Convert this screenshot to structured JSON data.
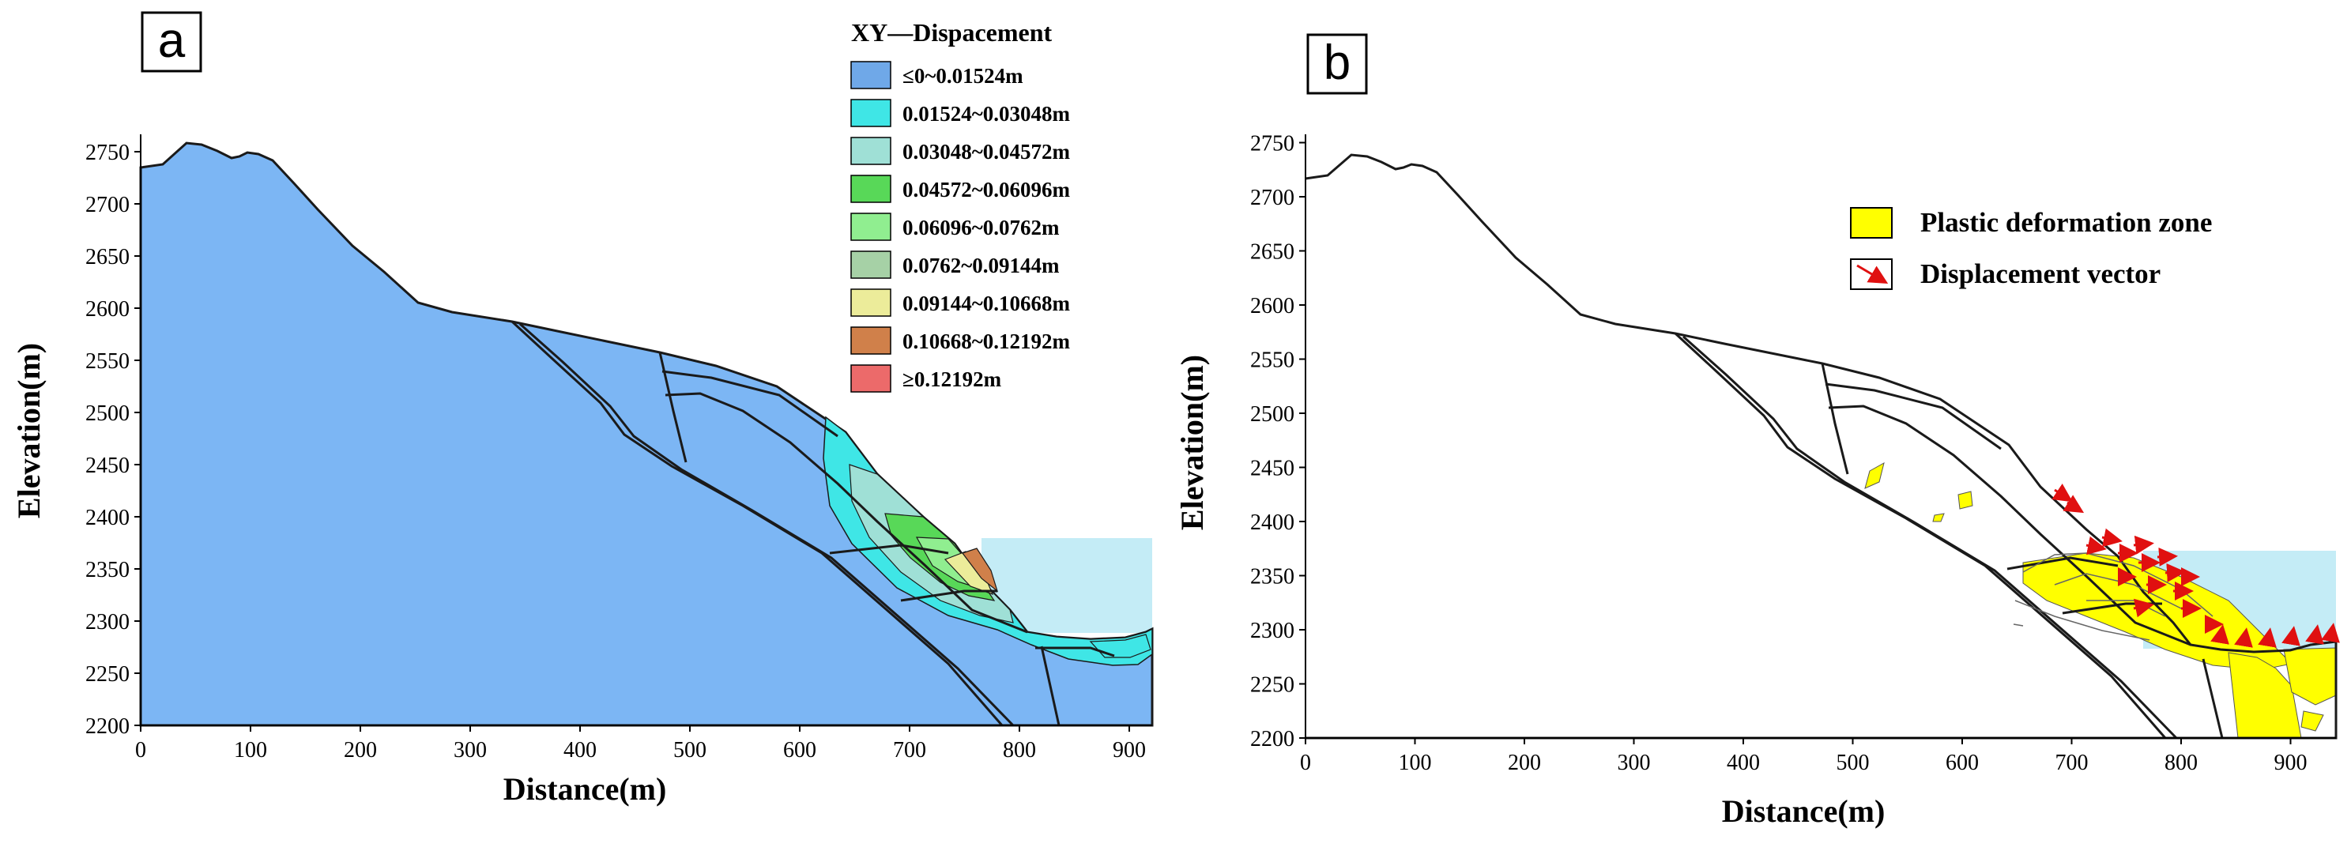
{
  "panels": [
    {
      "letter": "a",
      "xlabel": "Distance(m)",
      "ylabel": "Elevation(m)",
      "xticks": [
        "0",
        "100",
        "200",
        "300",
        "400",
        "500",
        "600",
        "700",
        "800",
        "900"
      ],
      "yticks": [
        "2200",
        "2250",
        "2300",
        "2350",
        "2400",
        "2450",
        "2500",
        "2550",
        "2600",
        "2650",
        "2700",
        "2750"
      ],
      "legend_title": "XY—Dispacement",
      "legend": [
        {
          "label": "≤0~0.01524m",
          "color": "#6fa8e8"
        },
        {
          "label": "0.01524~0.03048m",
          "color": "#3fe6e6"
        },
        {
          "label": "0.03048~0.04572m",
          "color": "#9fe0d6"
        },
        {
          "label": "0.04572~0.06096m",
          "color": "#58d858"
        },
        {
          "label": "0.06096~0.0762m",
          "color": "#90ee90"
        },
        {
          "label": "0.0762~0.09144m",
          "color": "#a6d1a6"
        },
        {
          "label": "0.09144~0.10668m",
          "color": "#ecec9a"
        },
        {
          "label": "0.10668~0.12192m",
          "color": "#d0804a"
        },
        {
          "label": "≥0.12192m",
          "color": "#ec6a6a"
        }
      ]
    },
    {
      "letter": "b",
      "xlabel": "Distance(m)",
      "ylabel": "Elevation(m)",
      "xticks": [
        "0",
        "100",
        "200",
        "300",
        "400",
        "500",
        "600",
        "700",
        "800",
        "900"
      ],
      "yticks": [
        "2200",
        "2250",
        "2300",
        "2350",
        "2400",
        "2450",
        "2500",
        "2550",
        "2600",
        "2650",
        "2700",
        "2750"
      ],
      "legend": [
        {
          "label": "Plastic deformation zone",
          "color": "#ffff00",
          "kind": "fill"
        },
        {
          "label": "Displacement vector",
          "color": "#e01010",
          "kind": "arrow"
        }
      ]
    }
  ],
  "colors": {
    "slope_fill": "#7cb6f4",
    "water": "#c4ecf6",
    "plastic": "#ffff00",
    "vector": "#e01010",
    "line": "#1a1a1a"
  }
}
